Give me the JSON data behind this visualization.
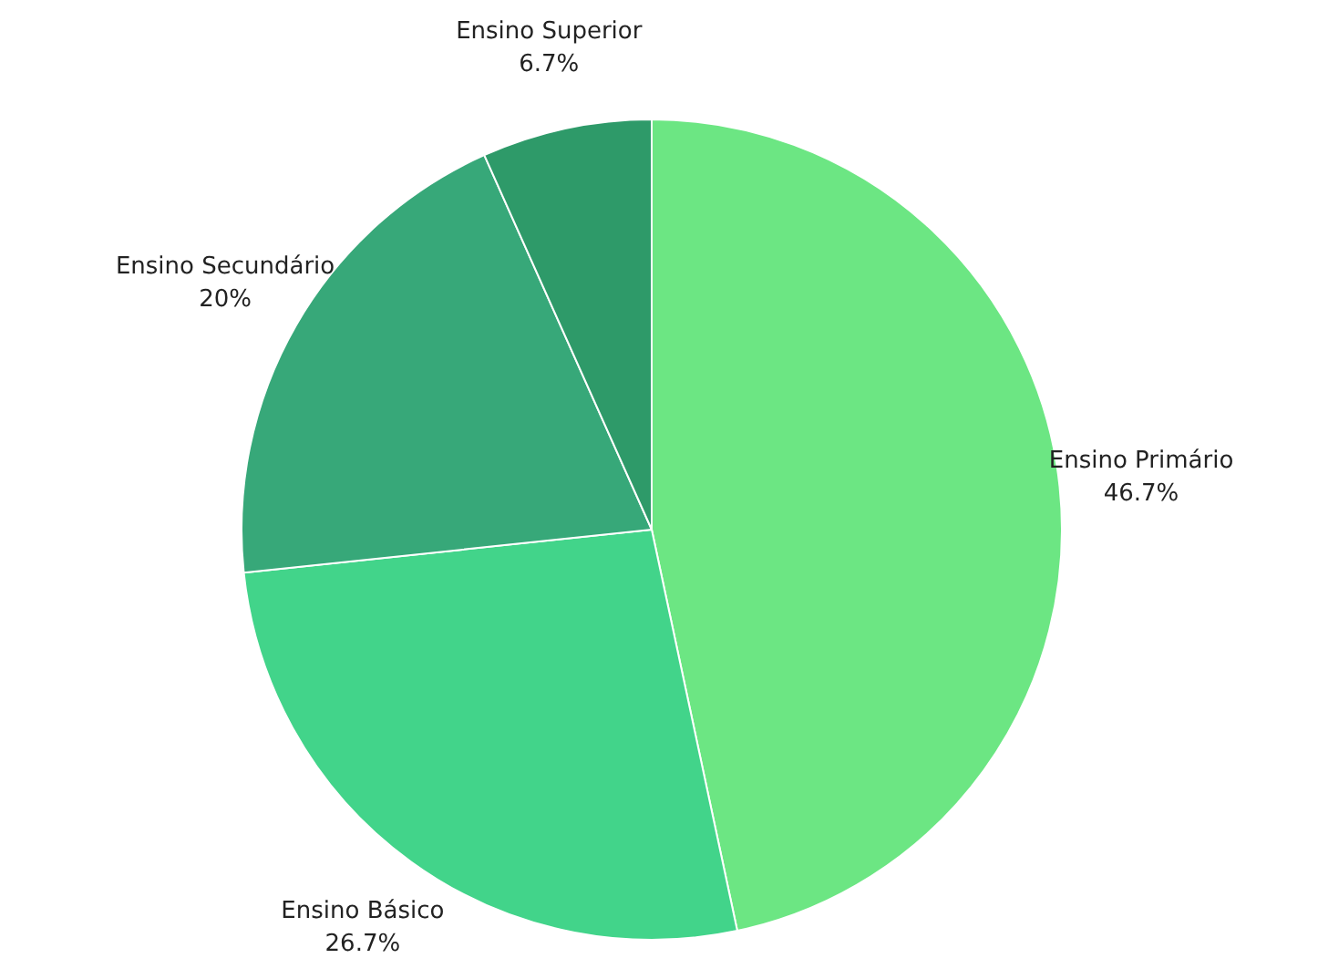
{
  "chart_data": {
    "type": "pie",
    "categories": [
      "Ensino Primário",
      "Ensino Básico",
      "Ensino Secundário",
      "Ensino Superior"
    ],
    "values": [
      46.7,
      26.7,
      20,
      6.7
    ],
    "colors": [
      "#6ce683",
      "#42d48a",
      "#37a879",
      "#2e9a69"
    ],
    "value_labels": [
      "46.7%",
      "26.7%",
      "20%",
      "6.7%"
    ]
  }
}
